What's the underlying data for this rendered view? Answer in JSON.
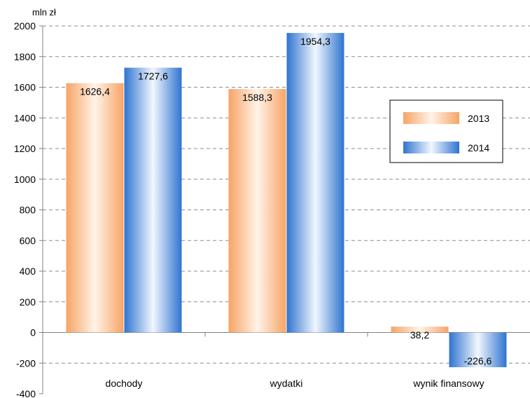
{
  "chart_data": {
    "type": "bar",
    "unit_label": "mln zł",
    "categories": [
      "dochody",
      "wydatki",
      "wynik finansowy"
    ],
    "series": [
      {
        "name": "2013",
        "values": [
          1626.4,
          1588.3,
          38.2
        ],
        "labels": [
          "1626,4",
          "1588,3",
          "38,2"
        ],
        "color": "#f7a969"
      },
      {
        "name": "2014",
        "values": [
          1727.6,
          1954.3,
          -226.6
        ],
        "labels": [
          "1727,6",
          "1954,3",
          "-226,6"
        ],
        "color": "#3a7fd8"
      }
    ],
    "ylim": [
      -400,
      2000
    ],
    "yticks": [
      -400,
      -200,
      0,
      200,
      400,
      600,
      800,
      1000,
      1200,
      1400,
      1600,
      1800,
      2000
    ],
    "grid": true,
    "legend_position": "right"
  }
}
